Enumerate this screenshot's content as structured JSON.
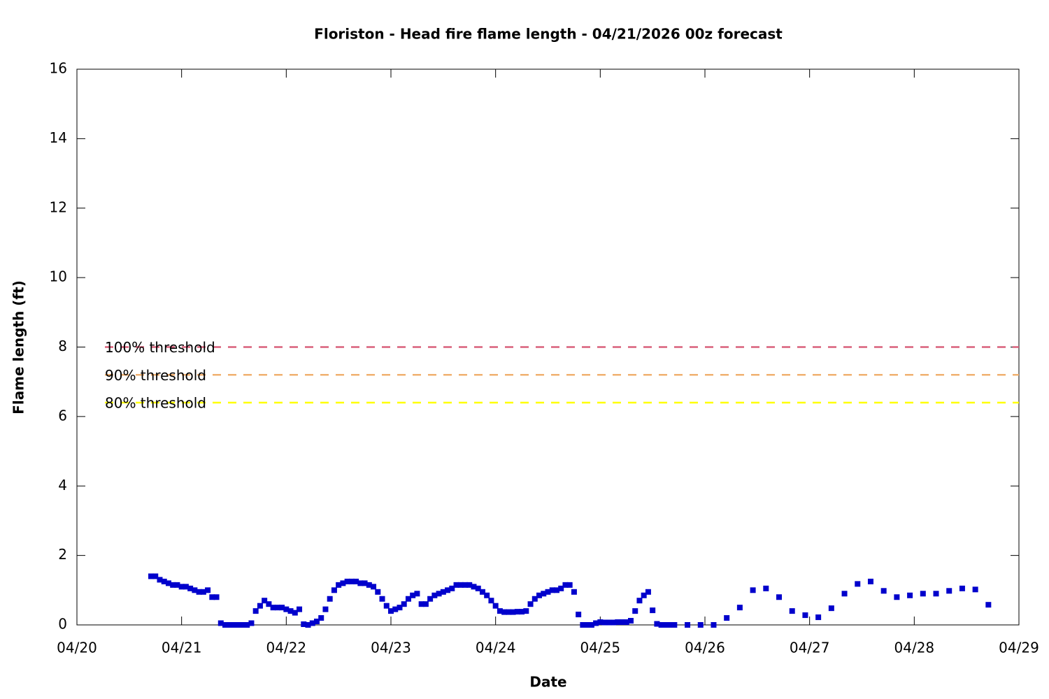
{
  "chart_data": {
    "type": "scatter",
    "title": "Floriston - Head fire flame length - 04/21/2026 00z forecast",
    "xlabel": "Date",
    "ylabel": "Flame length (ft)",
    "xlim": [
      0,
      216
    ],
    "xticks": [
      {
        "value": 0,
        "label": "04/20"
      },
      {
        "value": 24,
        "label": "04/21"
      },
      {
        "value": 48,
        "label": "04/22"
      },
      {
        "value": 72,
        "label": "04/23"
      },
      {
        "value": 96,
        "label": "04/24"
      },
      {
        "value": 120,
        "label": "04/25"
      },
      {
        "value": 144,
        "label": "04/26"
      },
      {
        "value": 168,
        "label": "04/27"
      },
      {
        "value": 192,
        "label": "04/28"
      },
      {
        "value": 216,
        "label": "04/29"
      }
    ],
    "ylim": [
      0,
      16
    ],
    "yticks": [
      0,
      2,
      4,
      6,
      8,
      10,
      12,
      14,
      16
    ],
    "color": "#0000cc",
    "x": [
      17,
      18,
      19,
      20,
      21,
      22,
      23,
      24,
      25,
      26,
      27,
      28,
      29,
      30,
      31,
      32,
      33,
      34,
      35,
      36,
      37,
      38,
      39,
      40,
      41,
      42,
      43,
      44,
      45,
      46,
      47,
      48,
      49,
      50,
      51,
      52,
      53,
      54,
      55,
      56,
      57,
      58,
      59,
      60,
      61,
      62,
      63,
      64,
      65,
      66,
      67,
      68,
      69,
      70,
      71,
      72,
      73,
      74,
      75,
      76,
      77,
      78,
      79,
      80,
      81,
      82,
      83,
      84,
      85,
      86,
      87,
      88,
      89,
      90,
      91,
      92,
      93,
      94,
      95,
      96,
      97,
      98,
      99,
      100,
      101,
      102,
      103,
      104,
      105,
      106,
      107,
      108,
      109,
      110,
      111,
      112,
      113,
      114,
      115,
      116,
      117,
      118,
      119,
      120,
      121,
      122,
      123,
      124,
      125,
      126,
      127,
      128,
      129,
      130,
      131,
      132,
      133,
      134,
      135,
      136,
      137,
      140,
      143,
      146,
      149,
      152,
      155,
      158,
      161,
      164,
      167,
      170,
      173,
      176,
      179,
      182,
      185,
      188,
      191,
      194,
      197,
      200,
      203,
      206,
      209
    ],
    "values": [
      1.4,
      1.4,
      1.3,
      1.25,
      1.2,
      1.15,
      1.15,
      1.1,
      1.1,
      1.05,
      1.0,
      0.95,
      0.95,
      1.0,
      0.8,
      0.8,
      0.05,
      0,
      0,
      0,
      0,
      0,
      0,
      0.05,
      0.4,
      0.55,
      0.7,
      0.6,
      0.5,
      0.5,
      0.5,
      0.45,
      0.4,
      0.35,
      0.45,
      0.02,
      0,
      0.05,
      0.1,
      0.2,
      0.45,
      0.75,
      1.0,
      1.15,
      1.2,
      1.25,
      1.25,
      1.25,
      1.2,
      1.2,
      1.15,
      1.1,
      0.95,
      0.75,
      0.55,
      0.4,
      0.45,
      0.5,
      0.6,
      0.75,
      0.85,
      0.9,
      0.6,
      0.6,
      0.75,
      0.85,
      0.9,
      0.95,
      1.0,
      1.05,
      1.15,
      1.15,
      1.15,
      1.15,
      1.1,
      1.05,
      0.95,
      0.85,
      0.7,
      0.55,
      0.4,
      0.37,
      0.37,
      0.37,
      0.38,
      0.38,
      0.4,
      0.6,
      0.75,
      0.85,
      0.9,
      0.95,
      1.0,
      1.0,
      1.05,
      1.15,
      1.15,
      0.95,
      0.3,
      0,
      0,
      0,
      0.05,
      0.08,
      0.07,
      0.07,
      0.07,
      0.08,
      0.08,
      0.08,
      0.12,
      0.4,
      0.7,
      0.85,
      0.95,
      0.42,
      0.03,
      0,
      0,
      0,
      0,
      0,
      0,
      0,
      0.2,
      0.5,
      1.0,
      1.05,
      0.8,
      0.4,
      0.28,
      0.22,
      0.48,
      0.9,
      1.18,
      1.25,
      0.98,
      0.8,
      0.85,
      0.9,
      0.9,
      0.98,
      1.05,
      1.02,
      0.58
    ],
    "thresholds": [
      {
        "name": "100% threshold",
        "color": "#d9607c",
        "value": 8
      },
      {
        "name": "90% threshold",
        "color": "#f0b070",
        "value": 7.2
      },
      {
        "name": "80% threshold",
        "color": "#ffff00",
        "value": 6.4
      }
    ]
  }
}
